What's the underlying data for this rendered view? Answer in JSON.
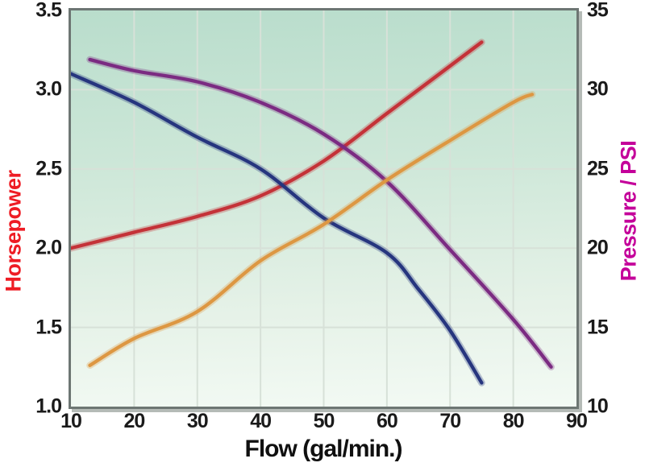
{
  "chart_data": {
    "type": "line",
    "title": "",
    "legend": "none",
    "grid": true,
    "gridline_color": "#d7e1d8",
    "plot_background_top": "#b9ddcc",
    "plot_background_bottom": "#f3faf4",
    "border_color": "#6d7673",
    "x_axis": {
      "label": "Flow (gal/min.)",
      "min": 10,
      "max": 90,
      "ticks": [
        "10",
        "20",
        "30",
        "40",
        "50",
        "60",
        "70",
        "80",
        "90"
      ]
    },
    "y_axis_left": {
      "label": "Horsepower",
      "color": "#ee1c24",
      "min": 1.0,
      "max": 3.5,
      "ticks": [
        "1.0",
        "1.5",
        "2.0",
        "2.5",
        "3.0",
        "3.5"
      ]
    },
    "y_axis_right": {
      "label": "Pressure / PSI",
      "color": "#c4009a",
      "min": 10,
      "max": 35,
      "ticks": [
        "10",
        "15",
        "20",
        "25",
        "30",
        "35"
      ]
    },
    "series": [
      {
        "name": "horsepower-red-curve",
        "axis": "left",
        "color": "#c43238",
        "points": [
          [
            10,
            2.0
          ],
          [
            20,
            2.1
          ],
          [
            30,
            2.2
          ],
          [
            40,
            2.33
          ],
          [
            50,
            2.55
          ],
          [
            60,
            2.85
          ],
          [
            70,
            3.15
          ],
          [
            75,
            3.3
          ]
        ]
      },
      {
        "name": "blue-curve",
        "axis": "left",
        "color": "#26357e",
        "points": [
          [
            10,
            3.1
          ],
          [
            20,
            2.92
          ],
          [
            30,
            2.7
          ],
          [
            40,
            2.5
          ],
          [
            50,
            2.19
          ],
          [
            60,
            1.97
          ],
          [
            65,
            1.74
          ],
          [
            70,
            1.48
          ],
          [
            75,
            1.15
          ]
        ]
      },
      {
        "name": "pressure-purple-curve",
        "axis": "right",
        "color": "#7b2b82",
        "points": [
          [
            13,
            31.9
          ],
          [
            20,
            31.2
          ],
          [
            30,
            30.5
          ],
          [
            40,
            29.2
          ],
          [
            50,
            27.2
          ],
          [
            60,
            24.2
          ],
          [
            70,
            19.9
          ],
          [
            80,
            15.5
          ],
          [
            86,
            12.5
          ]
        ]
      },
      {
        "name": "orange-curve",
        "axis": "right",
        "color": "#dd9742",
        "points": [
          [
            13,
            12.6
          ],
          [
            20,
            14.3
          ],
          [
            30,
            16.0
          ],
          [
            40,
            19.2
          ],
          [
            50,
            21.5
          ],
          [
            60,
            24.3
          ],
          [
            70,
            26.8
          ],
          [
            80,
            29.2
          ],
          [
            83,
            29.7
          ]
        ]
      }
    ]
  }
}
